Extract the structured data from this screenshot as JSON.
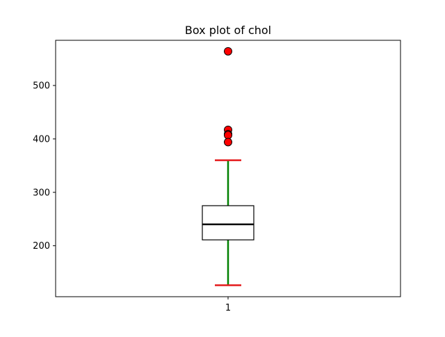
{
  "chart_data": {
    "type": "box",
    "title": "Box plot of chol",
    "xlabel": "",
    "ylabel": "",
    "categories": [
      "1"
    ],
    "ylim": [
      104.6,
      584.6
    ],
    "yticks": [
      200,
      300,
      400,
      500
    ],
    "grid": false,
    "box": {
      "whisker_low": 126,
      "q1": 211,
      "median": 240,
      "q3": 275,
      "whisker_high": 360,
      "outliers": [
        564,
        417,
        409,
        407,
        394
      ]
    },
    "colors": {
      "box_edge": "#000000",
      "median": "#000000",
      "whisker": "#008000",
      "cap": "#e41a1c",
      "outlier_fill": "#ff0000",
      "outlier_edge": "#000000"
    }
  }
}
